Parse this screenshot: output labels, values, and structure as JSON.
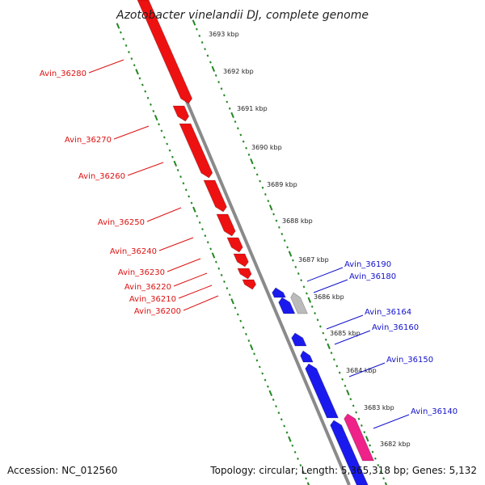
{
  "title": "Azotobacter vinelandii DJ, complete genome",
  "accession_text": "Accession: NC_012560",
  "topology_text": "Topology: circular; Length: 5,365,318 bp; Genes: 5,132",
  "colors": {
    "forward_gene": "#ee1111",
    "reverse_gene": "#1a1aee",
    "pseudo_gene": "#bbbbbb",
    "rna_gene": "#ee2288",
    "tick": "#228822",
    "backbone": "#8a8a8a",
    "forward_label": "#dd1111",
    "reverse_label": "#1111cc"
  },
  "kbp_labels": [
    "3693 kbp",
    "3692 kbp",
    "3691 kbp",
    "3690 kbp",
    "3689 kbp",
    "3688 kbp",
    "3687 kbp",
    "3686 kbp",
    "3685 kbp",
    "3684 kbp",
    "3683 kbp",
    "3682 kbp"
  ],
  "forward_genes": [
    "Avin_36280",
    "Avin_36270",
    "Avin_36260",
    "Avin_36250",
    "Avin_36240",
    "Avin_36230",
    "Avin_36220",
    "Avin_36210",
    "Avin_36200"
  ],
  "reverse_genes": [
    "Avin_36190",
    "Avin_36180",
    "Avin_36164",
    "Avin_36160",
    "Avin_36150",
    "Avin_36140"
  ]
}
